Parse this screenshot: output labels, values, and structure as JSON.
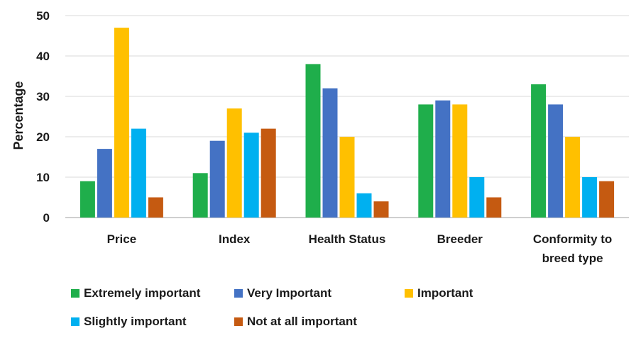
{
  "chart_data": {
    "type": "bar",
    "ylabel": "Percentage",
    "xlabel": "",
    "title": "",
    "ylim": [
      0,
      50
    ],
    "yticks": [
      "0",
      "10",
      "20",
      "30",
      "40",
      "50"
    ],
    "grid": true,
    "legend_position": "bottom",
    "categories": [
      [
        "Price"
      ],
      [
        "Index"
      ],
      [
        "Health Status"
      ],
      [
        "Breeder"
      ],
      [
        "Conformity to",
        "breed type"
      ]
    ],
    "series": [
      {
        "name": "Extremely important",
        "color": "#1fae4b",
        "values": [
          9,
          11,
          38,
          28,
          33
        ]
      },
      {
        "name": "Very Important",
        "color": "#4472c4",
        "values": [
          17,
          19,
          32,
          29,
          28
        ]
      },
      {
        "name": "Important",
        "color": "#ffc000",
        "values": [
          47,
          27,
          20,
          28,
          20
        ]
      },
      {
        "name": "Slightly important",
        "color": "#00b0f0",
        "values": [
          22,
          21,
          6,
          10,
          10
        ]
      },
      {
        "name": "Not at all important",
        "color": "#c55a11",
        "values": [
          5,
          22,
          4,
          5,
          9
        ]
      }
    ]
  }
}
